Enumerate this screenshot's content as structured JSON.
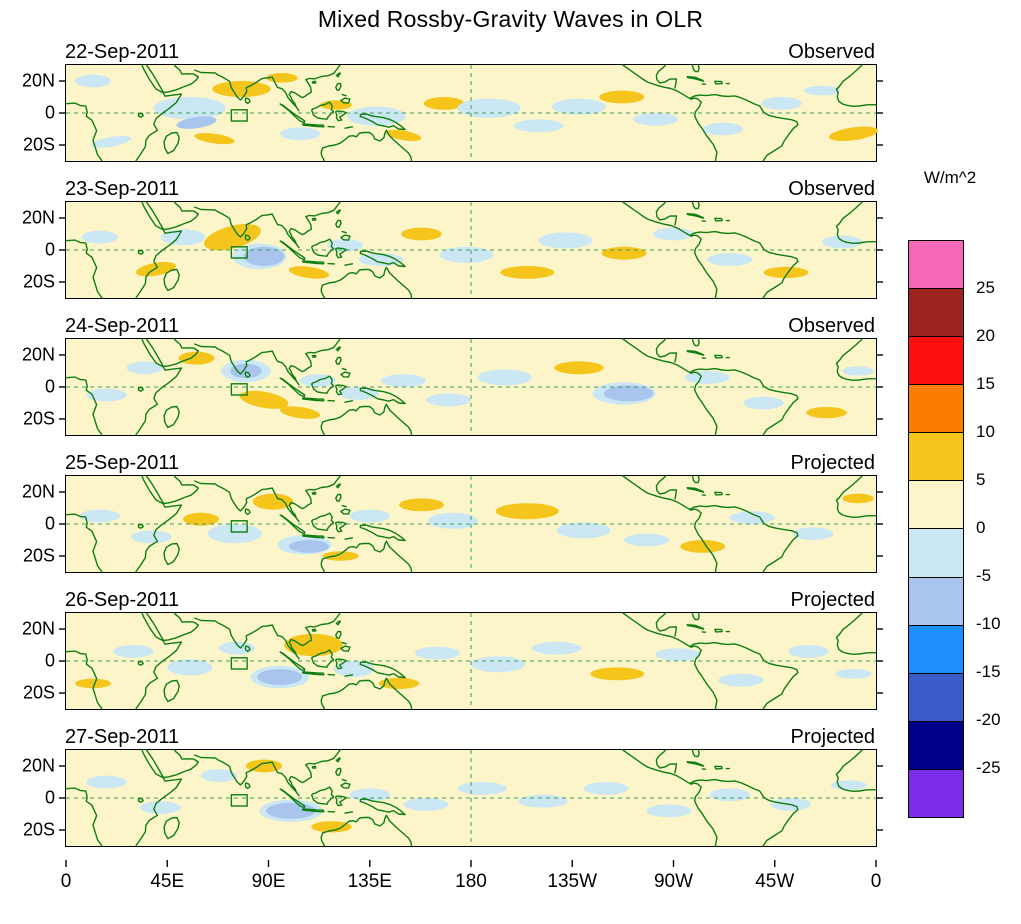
{
  "title": "Mixed Rossby-Gravity Waves in OLR",
  "colorbar": {
    "units_label": "W/m^2",
    "tick_labels": [
      "25",
      "20",
      "15",
      "10",
      "5",
      "0",
      "-5",
      "-10",
      "-15",
      "-20",
      "-25"
    ],
    "colors_top_to_bottom": [
      "#F767B8",
      "#9C2320",
      "#FA0F0E",
      "#FA7C00",
      "#F5C51B",
      "#FBF5C9",
      "#CBE7F3",
      "#A9C5ED",
      "#1E8FFF",
      "#3A5BC8",
      "#00008B",
      "#7A2CE8"
    ]
  },
  "chart_data": {
    "type": "heatmap",
    "title": "Mixed Rossby-Gravity Waves in OLR",
    "units": "W/m^2",
    "lon_range": [
      0,
      360
    ],
    "lat_range": [
      -30,
      30
    ],
    "x_ticks": [
      {
        "lon": 0,
        "label": "0"
      },
      {
        "lon": 45,
        "label": "45E"
      },
      {
        "lon": 90,
        "label": "90E"
      },
      {
        "lon": 135,
        "label": "135E"
      },
      {
        "lon": 180,
        "label": "180"
      },
      {
        "lon": 225,
        "label": "135W"
      },
      {
        "lon": 270,
        "label": "90W"
      },
      {
        "lon": 315,
        "label": "45W"
      },
      {
        "lon": 360,
        "label": "0"
      }
    ],
    "y_ticks": [
      {
        "lat": 20,
        "label": "20N"
      },
      {
        "lat": 0,
        "label": "0"
      },
      {
        "lat": -20,
        "label": "20S"
      }
    ],
    "levels": [
      -25,
      -20,
      -15,
      -10,
      -5,
      0,
      5,
      10,
      15,
      20,
      25
    ],
    "background_color": "#FBF5C9",
    "coast_color": "#0F7E12",
    "grid": {
      "equator_dashed": true,
      "dateline_lon": 180,
      "color": "#3BA05A"
    },
    "marker_box": {
      "lon": 77,
      "lat": -1.5,
      "w": 7,
      "h": 7
    },
    "anomaly_colors": {
      "p1": "#F5C51B",
      "n1": "#CBE7F3",
      "n2": "#A9C5ED"
    },
    "panels": [
      {
        "date": "22-Sep-2011",
        "label": "Observed",
        "anomalies": [
          {
            "x": 20,
            "y": -18,
            "rx": 9,
            "ry": 3,
            "r": -10,
            "c": "n1"
          },
          {
            "x": 12,
            "y": 20,
            "rx": 8,
            "ry": 4,
            "r": 0,
            "c": "n1"
          },
          {
            "x": 55,
            "y": 3,
            "rx": 16,
            "ry": 7,
            "r": 0,
            "c": "n1"
          },
          {
            "x": 58,
            "y": -6,
            "rx": 9,
            "ry": 3.5,
            "r": -8,
            "c": "n2"
          },
          {
            "x": 78,
            "y": 15,
            "rx": 13,
            "ry": 5,
            "r": 0,
            "c": "p1"
          },
          {
            "x": 66,
            "y": -16,
            "rx": 9,
            "ry": 3,
            "r": 8,
            "c": "p1"
          },
          {
            "x": 96,
            "y": 22,
            "rx": 7,
            "ry": 3,
            "r": 0,
            "c": "p1"
          },
          {
            "x": 104,
            "y": -13,
            "rx": 9,
            "ry": 4,
            "r": 0,
            "c": "n1"
          },
          {
            "x": 120,
            "y": 5,
            "rx": 7,
            "ry": 3,
            "r": 0,
            "c": "p1"
          },
          {
            "x": 138,
            "y": -2,
            "rx": 13,
            "ry": 6,
            "r": 0,
            "c": "n1"
          },
          {
            "x": 150,
            "y": -14,
            "rx": 8,
            "ry": 3,
            "r": 10,
            "c": "p1"
          },
          {
            "x": 168,
            "y": 6,
            "rx": 9,
            "ry": 4,
            "r": 0,
            "c": "p1"
          },
          {
            "x": 188,
            "y": 3,
            "rx": 14,
            "ry": 6,
            "r": 0,
            "c": "n1"
          },
          {
            "x": 210,
            "y": -8,
            "rx": 11,
            "ry": 4,
            "r": 0,
            "c": "n1"
          },
          {
            "x": 228,
            "y": 4,
            "rx": 12,
            "ry": 5,
            "r": 0,
            "c": "n1"
          },
          {
            "x": 247,
            "y": 10,
            "rx": 10,
            "ry": 4,
            "r": 0,
            "c": "p1"
          },
          {
            "x": 262,
            "y": -4,
            "rx": 10,
            "ry": 4,
            "r": 0,
            "c": "n1"
          },
          {
            "x": 292,
            "y": -10,
            "rx": 9,
            "ry": 4,
            "r": 0,
            "c": "n1"
          },
          {
            "x": 318,
            "y": 6,
            "rx": 9,
            "ry": 4,
            "r": 0,
            "c": "n1"
          },
          {
            "x": 350,
            "y": -13,
            "rx": 11,
            "ry": 4,
            "r": -8,
            "c": "p1"
          },
          {
            "x": 336,
            "y": 14,
            "rx": 8,
            "ry": 3,
            "r": 0,
            "c": "n1"
          }
        ]
      },
      {
        "date": "23-Sep-2011",
        "label": "Observed",
        "anomalies": [
          {
            "x": 15,
            "y": 8,
            "rx": 8,
            "ry": 4,
            "r": 0,
            "c": "n1"
          },
          {
            "x": 40,
            "y": -12,
            "rx": 9,
            "ry": 4,
            "r": -10,
            "c": "p1"
          },
          {
            "x": 52,
            "y": 8,
            "rx": 10,
            "ry": 5,
            "r": 0,
            "c": "n1"
          },
          {
            "x": 86,
            "y": -4,
            "rx": 12,
            "ry": 8,
            "r": 0,
            "c": "n1"
          },
          {
            "x": 88,
            "y": -4,
            "rx": 9,
            "ry": 6,
            "r": 0,
            "c": "n2"
          },
          {
            "x": 74,
            "y": 8,
            "rx": 13,
            "ry": 7,
            "r": -15,
            "c": "p1"
          },
          {
            "x": 108,
            "y": -14,
            "rx": 9,
            "ry": 3.5,
            "r": 8,
            "c": "p1"
          },
          {
            "x": 124,
            "y": 3,
            "rx": 8,
            "ry": 4,
            "r": 0,
            "c": "n1"
          },
          {
            "x": 140,
            "y": -6,
            "rx": 10,
            "ry": 4,
            "r": 0,
            "c": "n1"
          },
          {
            "x": 158,
            "y": 10,
            "rx": 9,
            "ry": 4,
            "r": 0,
            "c": "p1"
          },
          {
            "x": 178,
            "y": -3,
            "rx": 12,
            "ry": 5,
            "r": 0,
            "c": "n1"
          },
          {
            "x": 205,
            "y": -14,
            "rx": 12,
            "ry": 4,
            "r": 0,
            "c": "p1"
          },
          {
            "x": 222,
            "y": 6,
            "rx": 12,
            "ry": 5,
            "r": 0,
            "c": "n1"
          },
          {
            "x": 248,
            "y": -2,
            "rx": 10,
            "ry": 4,
            "r": 0,
            "c": "p1"
          },
          {
            "x": 270,
            "y": 10,
            "rx": 9,
            "ry": 4,
            "r": 0,
            "c": "n1"
          },
          {
            "x": 295,
            "y": -6,
            "rx": 10,
            "ry": 4,
            "r": 0,
            "c": "n1"
          },
          {
            "x": 320,
            "y": -14,
            "rx": 10,
            "ry": 3.5,
            "r": 0,
            "c": "p1"
          },
          {
            "x": 345,
            "y": 5,
            "rx": 9,
            "ry": 4,
            "r": 0,
            "c": "n1"
          }
        ]
      },
      {
        "date": "24-Sep-2011",
        "label": "Observed",
        "anomalies": [
          {
            "x": 18,
            "y": -5,
            "rx": 9,
            "ry": 4,
            "r": 0,
            "c": "n1"
          },
          {
            "x": 35,
            "y": 12,
            "rx": 8,
            "ry": 4,
            "r": 0,
            "c": "n1"
          },
          {
            "x": 58,
            "y": 18,
            "rx": 8,
            "ry": 4,
            "r": 0,
            "c": "p1"
          },
          {
            "x": 80,
            "y": 10,
            "rx": 11,
            "ry": 7,
            "r": 0,
            "c": "n1"
          },
          {
            "x": 80,
            "y": 10,
            "rx": 7,
            "ry": 4.5,
            "r": 0,
            "c": "n2"
          },
          {
            "x": 88,
            "y": -8,
            "rx": 11,
            "ry": 5,
            "r": 10,
            "c": "p1"
          },
          {
            "x": 104,
            "y": -16,
            "rx": 9,
            "ry": 3.5,
            "r": 8,
            "c": "p1"
          },
          {
            "x": 112,
            "y": 4,
            "rx": 8,
            "ry": 4,
            "r": 0,
            "c": "n1"
          },
          {
            "x": 130,
            "y": -4,
            "rx": 9,
            "ry": 4,
            "r": 0,
            "c": "n1"
          },
          {
            "x": 150,
            "y": 4,
            "rx": 10,
            "ry": 4,
            "r": 0,
            "c": "n1"
          },
          {
            "x": 170,
            "y": -8,
            "rx": 10,
            "ry": 4,
            "r": 0,
            "c": "n1"
          },
          {
            "x": 195,
            "y": 6,
            "rx": 12,
            "ry": 5,
            "r": 0,
            "c": "n1"
          },
          {
            "x": 228,
            "y": 12,
            "rx": 11,
            "ry": 4,
            "r": 0,
            "c": "p1"
          },
          {
            "x": 248,
            "y": -4,
            "rx": 14,
            "ry": 7,
            "r": 0,
            "c": "n1"
          },
          {
            "x": 250,
            "y": -4,
            "rx": 11,
            "ry": 5,
            "r": 0,
            "c": "n2"
          },
          {
            "x": 285,
            "y": 6,
            "rx": 10,
            "ry": 4,
            "r": 0,
            "c": "n1"
          },
          {
            "x": 310,
            "y": -10,
            "rx": 9,
            "ry": 4,
            "r": 0,
            "c": "n1"
          },
          {
            "x": 338,
            "y": -16,
            "rx": 9,
            "ry": 3.5,
            "r": 0,
            "c": "p1"
          },
          {
            "x": 352,
            "y": 10,
            "rx": 7,
            "ry": 3,
            "r": 0,
            "c": "n1"
          }
        ]
      },
      {
        "date": "25-Sep-2011",
        "label": "Projected",
        "anomalies": [
          {
            "x": 15,
            "y": 5,
            "rx": 9,
            "ry": 4,
            "r": 0,
            "c": "n1"
          },
          {
            "x": 38,
            "y": -8,
            "rx": 9,
            "ry": 4,
            "r": 0,
            "c": "n1"
          },
          {
            "x": 60,
            "y": 3,
            "rx": 8,
            "ry": 4,
            "r": 0,
            "c": "p1"
          },
          {
            "x": 75,
            "y": -6,
            "rx": 12,
            "ry": 6,
            "r": 0,
            "c": "n1"
          },
          {
            "x": 92,
            "y": 14,
            "rx": 9,
            "ry": 5,
            "r": 0,
            "c": "p1"
          },
          {
            "x": 106,
            "y": -13,
            "rx": 12,
            "ry": 6,
            "r": 0,
            "c": "n1"
          },
          {
            "x": 108,
            "y": -14,
            "rx": 9,
            "ry": 4,
            "r": 0,
            "c": "n2"
          },
          {
            "x": 122,
            "y": -20,
            "rx": 8,
            "ry": 3,
            "r": 0,
            "c": "p1"
          },
          {
            "x": 135,
            "y": 5,
            "rx": 9,
            "ry": 4,
            "r": 0,
            "c": "n1"
          },
          {
            "x": 158,
            "y": 12,
            "rx": 10,
            "ry": 4,
            "r": 0,
            "c": "p1"
          },
          {
            "x": 172,
            "y": 2,
            "rx": 11,
            "ry": 5,
            "r": 0,
            "c": "n1"
          },
          {
            "x": 205,
            "y": 8,
            "rx": 14,
            "ry": 5,
            "r": 0,
            "c": "p1"
          },
          {
            "x": 230,
            "y": -4,
            "rx": 12,
            "ry": 5,
            "r": 0,
            "c": "n1"
          },
          {
            "x": 258,
            "y": -10,
            "rx": 10,
            "ry": 4,
            "r": 0,
            "c": "n1"
          },
          {
            "x": 283,
            "y": -14,
            "rx": 10,
            "ry": 4,
            "r": 0,
            "c": "p1"
          },
          {
            "x": 305,
            "y": 4,
            "rx": 10,
            "ry": 4,
            "r": 0,
            "c": "n1"
          },
          {
            "x": 332,
            "y": -6,
            "rx": 9,
            "ry": 4,
            "r": 0,
            "c": "n1"
          },
          {
            "x": 352,
            "y": 16,
            "rx": 7,
            "ry": 3,
            "r": 0,
            "c": "p1"
          }
        ]
      },
      {
        "date": "26-Sep-2011",
        "label": "Projected",
        "anomalies": [
          {
            "x": 12,
            "y": -14,
            "rx": 8,
            "ry": 3,
            "r": 0,
            "c": "p1"
          },
          {
            "x": 30,
            "y": 6,
            "rx": 9,
            "ry": 4,
            "r": 0,
            "c": "n1"
          },
          {
            "x": 55,
            "y": -4,
            "rx": 10,
            "ry": 5,
            "r": 0,
            "c": "n1"
          },
          {
            "x": 76,
            "y": 8,
            "rx": 8,
            "ry": 4,
            "r": 0,
            "c": "n1"
          },
          {
            "x": 110,
            "y": 10,
            "rx": 13,
            "ry": 7,
            "r": 0,
            "c": "p1"
          },
          {
            "x": 95,
            "y": -10,
            "rx": 13,
            "ry": 7,
            "r": 0,
            "c": "n1"
          },
          {
            "x": 95,
            "y": -10,
            "rx": 10,
            "ry": 5,
            "r": 0,
            "c": "n2"
          },
          {
            "x": 128,
            "y": -5,
            "rx": 9,
            "ry": 5,
            "r": 0,
            "c": "n1"
          },
          {
            "x": 148,
            "y": -14,
            "rx": 9,
            "ry": 3.5,
            "r": 0,
            "c": "p1"
          },
          {
            "x": 165,
            "y": 5,
            "rx": 10,
            "ry": 4,
            "r": 0,
            "c": "n1"
          },
          {
            "x": 192,
            "y": -2,
            "rx": 12,
            "ry": 5,
            "r": 0,
            "c": "n1"
          },
          {
            "x": 218,
            "y": 8,
            "rx": 11,
            "ry": 4,
            "r": 0,
            "c": "n1"
          },
          {
            "x": 245,
            "y": -8,
            "rx": 12,
            "ry": 4,
            "r": 0,
            "c": "p1"
          },
          {
            "x": 272,
            "y": 4,
            "rx": 10,
            "ry": 4,
            "r": 0,
            "c": "n1"
          },
          {
            "x": 300,
            "y": -12,
            "rx": 10,
            "ry": 4,
            "r": 0,
            "c": "n1"
          },
          {
            "x": 330,
            "y": 6,
            "rx": 9,
            "ry": 4,
            "r": 0,
            "c": "n1"
          },
          {
            "x": 350,
            "y": -8,
            "rx": 8,
            "ry": 3,
            "r": 0,
            "c": "n1"
          }
        ]
      },
      {
        "date": "27-Sep-2011",
        "label": "Projected",
        "anomalies": [
          {
            "x": 18,
            "y": 10,
            "rx": 9,
            "ry": 4,
            "r": 0,
            "c": "n1"
          },
          {
            "x": 42,
            "y": -6,
            "rx": 9,
            "ry": 4,
            "r": 0,
            "c": "n1"
          },
          {
            "x": 68,
            "y": 14,
            "rx": 8,
            "ry": 4,
            "r": 0,
            "c": "n1"
          },
          {
            "x": 88,
            "y": 20,
            "rx": 8,
            "ry": 4,
            "r": 0,
            "c": "p1"
          },
          {
            "x": 100,
            "y": -8,
            "rx": 14,
            "ry": 7,
            "r": 0,
            "c": "n1"
          },
          {
            "x": 100,
            "y": -8,
            "rx": 11,
            "ry": 5,
            "r": 0,
            "c": "n2"
          },
          {
            "x": 118,
            "y": -18,
            "rx": 9,
            "ry": 3.5,
            "r": 0,
            "c": "p1"
          },
          {
            "x": 135,
            "y": 2,
            "rx": 9,
            "ry": 4,
            "r": 0,
            "c": "n1"
          },
          {
            "x": 160,
            "y": -4,
            "rx": 10,
            "ry": 4,
            "r": 0,
            "c": "n1"
          },
          {
            "x": 185,
            "y": 6,
            "rx": 11,
            "ry": 4,
            "r": 0,
            "c": "n1"
          },
          {
            "x": 212,
            "y": -2,
            "rx": 11,
            "ry": 4,
            "r": 0,
            "c": "n1"
          },
          {
            "x": 240,
            "y": 6,
            "rx": 10,
            "ry": 4,
            "r": 0,
            "c": "n1"
          },
          {
            "x": 268,
            "y": -8,
            "rx": 10,
            "ry": 4,
            "r": 0,
            "c": "n1"
          },
          {
            "x": 295,
            "y": 2,
            "rx": 9,
            "ry": 4,
            "r": 0,
            "c": "n1"
          },
          {
            "x": 322,
            "y": -4,
            "rx": 9,
            "ry": 4,
            "r": 0,
            "c": "n1"
          },
          {
            "x": 348,
            "y": 8,
            "rx": 8,
            "ry": 3,
            "r": 0,
            "c": "n1"
          }
        ]
      }
    ]
  }
}
